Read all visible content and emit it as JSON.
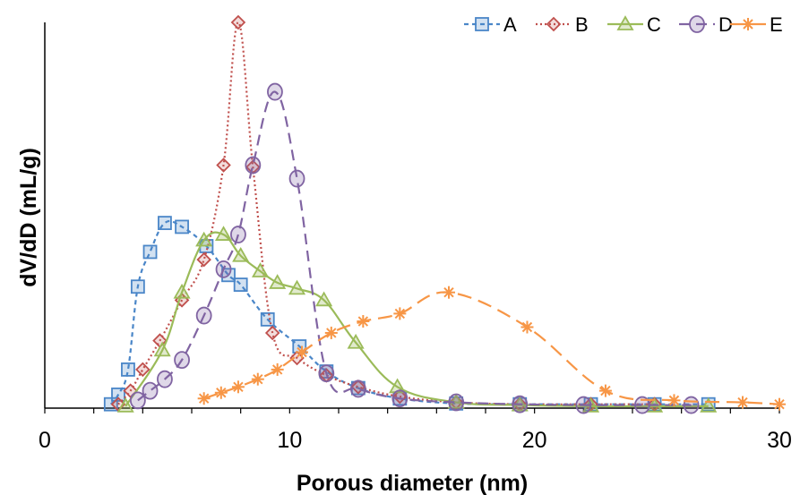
{
  "chart_data": {
    "type": "line",
    "title": "",
    "xlabel": "Porous diameter (nm)",
    "ylabel": "dV/dD (mL/g)",
    "xlim": [
      0,
      30
    ],
    "ylim": [
      0,
      1
    ],
    "x_ticks": [
      0,
      10,
      20,
      30
    ],
    "y_ticks": [],
    "grid": false,
    "legend_position": "top-right",
    "series": [
      {
        "name": "A",
        "color": "#4a86c8",
        "marker": "square",
        "line_style": "dashed-short",
        "points": [
          [
            2.7,
            0.01
          ],
          [
            3.0,
            0.035
          ],
          [
            3.4,
            0.1
          ],
          [
            3.8,
            0.315
          ],
          [
            4.3,
            0.405
          ],
          [
            4.9,
            0.48
          ],
          [
            5.6,
            0.47
          ],
          [
            6.6,
            0.42
          ],
          [
            7.5,
            0.345
          ],
          [
            8.0,
            0.32
          ],
          [
            9.1,
            0.23
          ],
          [
            10.4,
            0.16
          ],
          [
            11.5,
            0.095
          ],
          [
            12.8,
            0.052
          ],
          [
            14.5,
            0.025
          ],
          [
            16.8,
            0.012
          ],
          [
            19.4,
            0.01
          ],
          [
            22.3,
            0.01
          ],
          [
            24.9,
            0.01
          ],
          [
            27.1,
            0.01
          ]
        ]
      },
      {
        "name": "B",
        "color": "#c0504d",
        "marker": "diamond",
        "line_style": "dotted",
        "points": [
          [
            3.0,
            0.01
          ],
          [
            3.5,
            0.045
          ],
          [
            4.0,
            0.1
          ],
          [
            4.7,
            0.175
          ],
          [
            5.6,
            0.28
          ],
          [
            6.5,
            0.385
          ],
          [
            7.3,
            0.63
          ],
          [
            7.9,
            1.0
          ],
          [
            8.5,
            0.625
          ],
          [
            9.3,
            0.195
          ],
          [
            10.3,
            0.13
          ],
          [
            11.5,
            0.085
          ],
          [
            12.8,
            0.055
          ],
          [
            14.5,
            0.03
          ],
          [
            16.8,
            0.015
          ],
          [
            19.4,
            0.01
          ],
          [
            22.3,
            0.01
          ],
          [
            24.9,
            0.01
          ]
        ]
      },
      {
        "name": "C",
        "color": "#9bbb59",
        "marker": "triangle",
        "line_style": "solid",
        "points": [
          [
            3.3,
            0.005
          ],
          [
            4.8,
            0.15
          ],
          [
            5.6,
            0.3
          ],
          [
            6.5,
            0.435
          ],
          [
            7.3,
            0.45
          ],
          [
            8.0,
            0.395
          ],
          [
            8.8,
            0.355
          ],
          [
            9.5,
            0.325
          ],
          [
            10.3,
            0.31
          ],
          [
            11.4,
            0.28
          ],
          [
            12.7,
            0.17
          ],
          [
            14.4,
            0.055
          ],
          [
            16.8,
            0.015
          ],
          [
            19.4,
            0.008
          ],
          [
            22.3,
            0.005
          ],
          [
            24.9,
            0.005
          ],
          [
            27.1,
            0.005
          ]
        ]
      },
      {
        "name": "D",
        "color": "#8064a2",
        "marker": "circle",
        "line_style": "dashed",
        "points": [
          [
            3.8,
            0.02
          ],
          [
            4.3,
            0.045
          ],
          [
            4.9,
            0.075
          ],
          [
            5.6,
            0.125
          ],
          [
            6.5,
            0.24
          ],
          [
            7.3,
            0.36
          ],
          [
            7.9,
            0.45
          ],
          [
            8.5,
            0.63
          ],
          [
            9.4,
            0.82
          ],
          [
            10.3,
            0.595
          ],
          [
            11.5,
            0.09
          ],
          [
            12.8,
            0.05
          ],
          [
            14.5,
            0.025
          ],
          [
            16.8,
            0.015
          ],
          [
            19.4,
            0.01
          ],
          [
            22.0,
            0.008
          ],
          [
            24.4,
            0.008
          ],
          [
            26.4,
            0.008
          ]
        ]
      },
      {
        "name": "E",
        "color": "#f79646",
        "marker": "asterisk",
        "line_style": "long-dash",
        "points": [
          [
            6.5,
            0.025
          ],
          [
            7.2,
            0.04
          ],
          [
            7.9,
            0.055
          ],
          [
            8.7,
            0.075
          ],
          [
            9.5,
            0.1
          ],
          [
            10.5,
            0.145
          ],
          [
            11.7,
            0.195
          ],
          [
            13.0,
            0.225
          ],
          [
            14.5,
            0.245
          ],
          [
            16.5,
            0.3
          ],
          [
            19.7,
            0.21
          ],
          [
            22.9,
            0.045
          ],
          [
            25.7,
            0.02
          ],
          [
            28.5,
            0.015
          ],
          [
            30.0,
            0.01
          ]
        ]
      }
    ]
  }
}
